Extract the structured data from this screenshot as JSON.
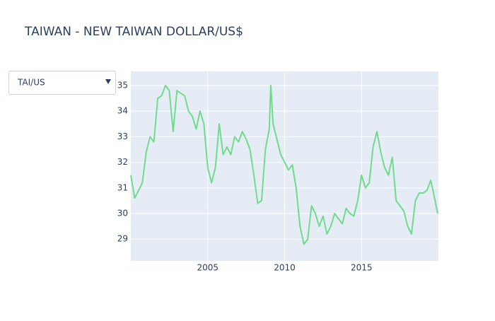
{
  "chart_data": {
    "type": "line",
    "title": "TAIWAN - NEW TAIWAN DOLLAR/US$",
    "dropdown": "TAI/US",
    "x": [
      2000.0,
      2000.25,
      2000.5,
      2000.75,
      2001.0,
      2001.25,
      2001.5,
      2001.75,
      2002.0,
      2002.25,
      2002.5,
      2002.75,
      2003.0,
      2003.25,
      2003.5,
      2003.75,
      2004.0,
      2004.25,
      2004.5,
      2004.75,
      2005.0,
      2005.25,
      2005.5,
      2005.75,
      2006.0,
      2006.25,
      2006.5,
      2006.75,
      2007.0,
      2007.25,
      2007.5,
      2007.75,
      2008.0,
      2008.25,
      2008.5,
      2008.75,
      2009.0,
      2009.1,
      2009.25,
      2009.5,
      2009.75,
      2010.0,
      2010.25,
      2010.5,
      2010.75,
      2011.0,
      2011.25,
      2011.5,
      2011.75,
      2012.0,
      2012.25,
      2012.5,
      2012.75,
      2013.0,
      2013.25,
      2013.5,
      2013.75,
      2014.0,
      2014.25,
      2014.5,
      2014.75,
      2015.0,
      2015.25,
      2015.5,
      2015.75,
      2016.0,
      2016.25,
      2016.5,
      2016.75,
      2017.0,
      2017.25,
      2017.5,
      2017.75,
      2018.0,
      2018.25,
      2018.5,
      2018.75,
      2019.0,
      2019.25,
      2019.5,
      2019.75,
      2019.95
    ],
    "series": [
      {
        "name": "TAI/US",
        "color": "#6fdc8c",
        "values": [
          31.5,
          30.6,
          30.9,
          31.2,
          32.4,
          33.0,
          32.8,
          34.5,
          34.6,
          35.0,
          34.8,
          33.2,
          34.8,
          34.7,
          34.6,
          34.0,
          33.8,
          33.3,
          34.0,
          33.5,
          31.8,
          31.2,
          31.8,
          33.5,
          32.3,
          32.6,
          32.3,
          33.0,
          32.8,
          33.2,
          32.9,
          32.5,
          31.5,
          30.4,
          30.5,
          32.5,
          33.3,
          35.0,
          33.5,
          32.9,
          32.3,
          32.0,
          31.7,
          31.9,
          31.0,
          29.5,
          28.8,
          29.0,
          30.3,
          30.0,
          29.5,
          29.9,
          29.2,
          29.5,
          30.0,
          29.8,
          29.6,
          30.2,
          30.0,
          29.9,
          30.5,
          31.5,
          31.0,
          31.2,
          32.6,
          33.2,
          32.4,
          31.8,
          31.5,
          32.2,
          30.5,
          30.3,
          30.1,
          29.5,
          29.2,
          30.5,
          30.8,
          30.8,
          30.9,
          31.3,
          30.6,
          30.0
        ]
      }
    ],
    "xlim": [
      2000,
      2020
    ],
    "xticks": [
      2005,
      2010,
      2015
    ],
    "ylim": [
      28.15,
      35.55
    ],
    "yticks": [
      29,
      30,
      31,
      32,
      33,
      34,
      35
    ],
    "grid": true
  }
}
